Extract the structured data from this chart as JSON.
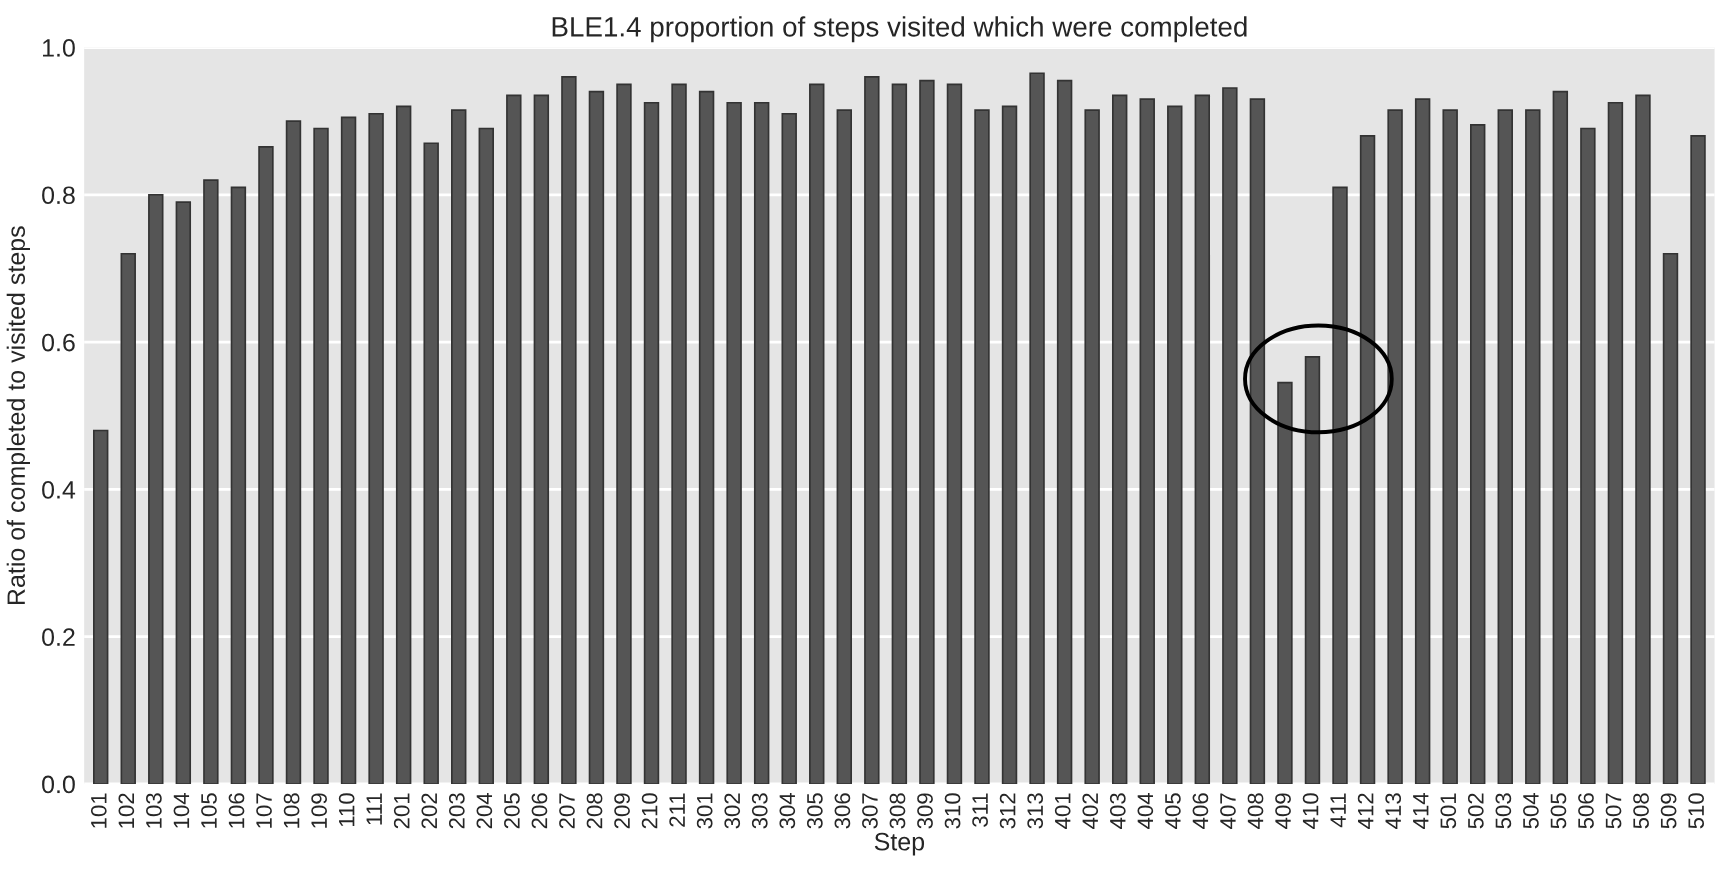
{
  "chart_data": {
    "type": "bar",
    "title": "BLE1.4 proportion of steps visited which were completed",
    "xlabel": "Step",
    "ylabel": "Ratio of completed to visited steps",
    "categories": [
      "101",
      "102",
      "103",
      "104",
      "105",
      "106",
      "107",
      "108",
      "109",
      "110",
      "111",
      "201",
      "202",
      "203",
      "204",
      "205",
      "206",
      "207",
      "208",
      "209",
      "210",
      "211",
      "301",
      "302",
      "303",
      "304",
      "305",
      "306",
      "307",
      "308",
      "309",
      "310",
      "311",
      "312",
      "313",
      "401",
      "402",
      "403",
      "404",
      "405",
      "406",
      "407",
      "408",
      "409",
      "410",
      "411",
      "412",
      "413",
      "414",
      "501",
      "502",
      "503",
      "504",
      "505",
      "506",
      "507",
      "508",
      "509",
      "510"
    ],
    "values": [
      0.48,
      0.72,
      0.8,
      0.79,
      0.82,
      0.81,
      0.865,
      0.9,
      0.89,
      0.905,
      0.91,
      0.92,
      0.87,
      0.915,
      0.89,
      0.935,
      0.935,
      0.96,
      0.94,
      0.95,
      0.925,
      0.95,
      0.94,
      0.925,
      0.925,
      0.91,
      0.95,
      0.915,
      0.96,
      0.95,
      0.955,
      0.95,
      0.915,
      0.92,
      0.965,
      0.955,
      0.915,
      0.935,
      0.93,
      0.92,
      0.935,
      0.945,
      0.93,
      0.545,
      0.58,
      0.81,
      0.88,
      0.915,
      0.93,
      0.915,
      0.895,
      0.915,
      0.915,
      0.94,
      0.89,
      0.925,
      0.935,
      0.72,
      0.88
    ],
    "color": "#555555",
    "ylim": [
      0,
      1.0
    ],
    "yticks": [
      {
        "value": 0,
        "label": "0.0"
      },
      {
        "value": 0.2,
        "label": "0.2"
      },
      {
        "value": 0.4,
        "label": "0.4"
      },
      {
        "value": 0.6,
        "label": "0.6"
      },
      {
        "value": 0.8,
        "label": "0.8"
      },
      {
        "value": 1.0,
        "label": "1.0"
      }
    ],
    "grid": "y"
  }
}
